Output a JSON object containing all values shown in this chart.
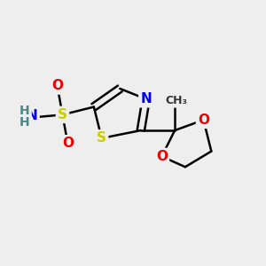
{
  "background_color": "#eeeeee",
  "atom_colors": {
    "S": "#cccc00",
    "N": "#0000ee",
    "O": "#ee0000",
    "C": "#000000",
    "H": "#4a8888"
  },
  "bond_color": "#000000",
  "bond_width": 1.8,
  "figsize": [
    3.0,
    3.0
  ],
  "dpi": 100
}
